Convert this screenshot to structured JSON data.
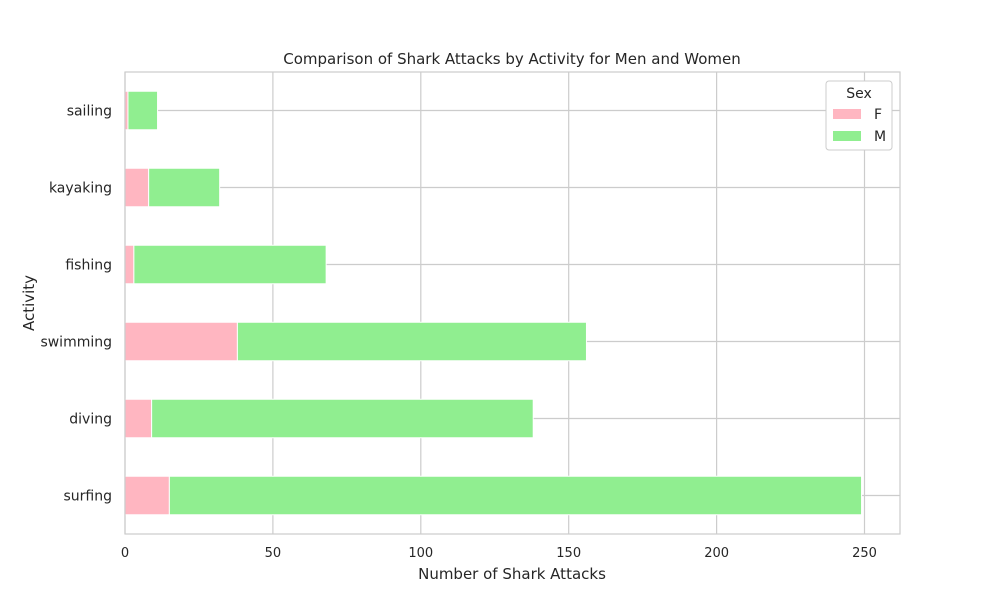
{
  "chart_data": {
    "type": "bar",
    "orientation": "horizontal",
    "stacked": true,
    "title": "Comparison of Shark Attacks by Activity for Men and Women",
    "xlabel": "Number of Shark Attacks",
    "ylabel": "Activity",
    "categories": [
      "surfing",
      "diving",
      "swimming",
      "fishing",
      "kayaking",
      "sailing"
    ],
    "series": [
      {
        "name": "F",
        "values": [
          15,
          9,
          38,
          3,
          8,
          1
        ],
        "color": "#ffb6c1"
      },
      {
        "name": "M",
        "values": [
          234,
          129,
          118,
          65,
          24,
          10
        ],
        "color": "#90ee90"
      }
    ],
    "xlim": [
      0,
      262
    ],
    "xticks": [
      0,
      50,
      100,
      150,
      200,
      250
    ],
    "grid": true,
    "legend": {
      "title": "Sex",
      "position": "top-right"
    }
  }
}
